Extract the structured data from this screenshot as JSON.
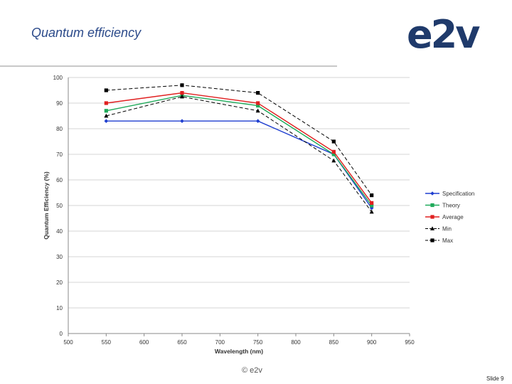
{
  "slide": {
    "title": "Quantum efficiency",
    "logo_text": "e2v",
    "footer": "© e2v",
    "slide_number": "Slide 9"
  },
  "chart_data": {
    "type": "line",
    "title": "",
    "xlabel": "Wavelength (nm)",
    "ylabel": "Quantum Efficiency (%)",
    "xlim": [
      500,
      950
    ],
    "ylim": [
      0,
      100
    ],
    "x_ticks": [
      500,
      550,
      600,
      650,
      700,
      750,
      800,
      850,
      900,
      950
    ],
    "y_ticks": [
      0,
      10,
      20,
      30,
      40,
      50,
      60,
      70,
      80,
      90,
      100
    ],
    "grid": true,
    "legend_position": "right",
    "x": [
      550,
      650,
      750,
      850,
      900
    ],
    "series": [
      {
        "name": "Specification",
        "values": [
          83,
          83,
          83,
          70,
          49
        ],
        "color": "#1f3fd0",
        "marker": "diamond",
        "dashed": false
      },
      {
        "name": "Theory",
        "values": [
          87,
          93,
          89,
          70,
          50
        ],
        "color": "#1faa5a",
        "marker": "square",
        "dashed": false
      },
      {
        "name": "Average",
        "values": [
          90,
          94,
          90,
          71,
          51
        ],
        "color": "#e02020",
        "marker": "square",
        "dashed": false
      },
      {
        "name": "Min",
        "values": [
          85,
          92.5,
          87,
          67.5,
          47.5
        ],
        "color": "#000000",
        "marker": "triangle",
        "dashed": true
      },
      {
        "name": "Max",
        "values": [
          95,
          97,
          94,
          75,
          54
        ],
        "color": "#000000",
        "marker": "square",
        "dashed": true
      }
    ]
  }
}
